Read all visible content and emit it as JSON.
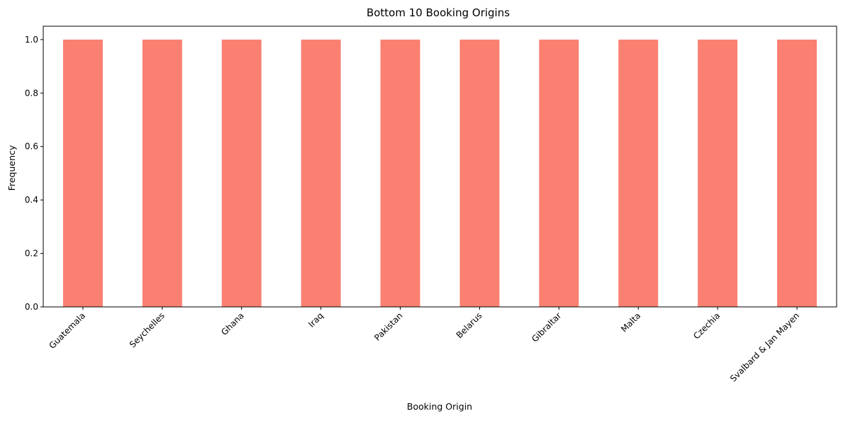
{
  "chart_data": {
    "type": "bar",
    "title": "Bottom 10 Booking Origins",
    "xlabel": "Booking Origin",
    "ylabel": "Frequency",
    "categories": [
      "Guatemala",
      "Seychelles",
      "Ghana",
      "Iraq",
      "Pakistan",
      "Belarus",
      "Gibraltar",
      "Malta",
      "Czechia",
      "Svalbard & Jan Mayen"
    ],
    "values": [
      1,
      1,
      1,
      1,
      1,
      1,
      1,
      1,
      1,
      1
    ],
    "ylim": [
      0,
      1.05
    ],
    "yticks": [
      "0.0",
      "0.2",
      "0.4",
      "0.6",
      "0.8",
      "1.0"
    ],
    "bar_color": "#FA8072",
    "grid": false,
    "legend": "none"
  }
}
